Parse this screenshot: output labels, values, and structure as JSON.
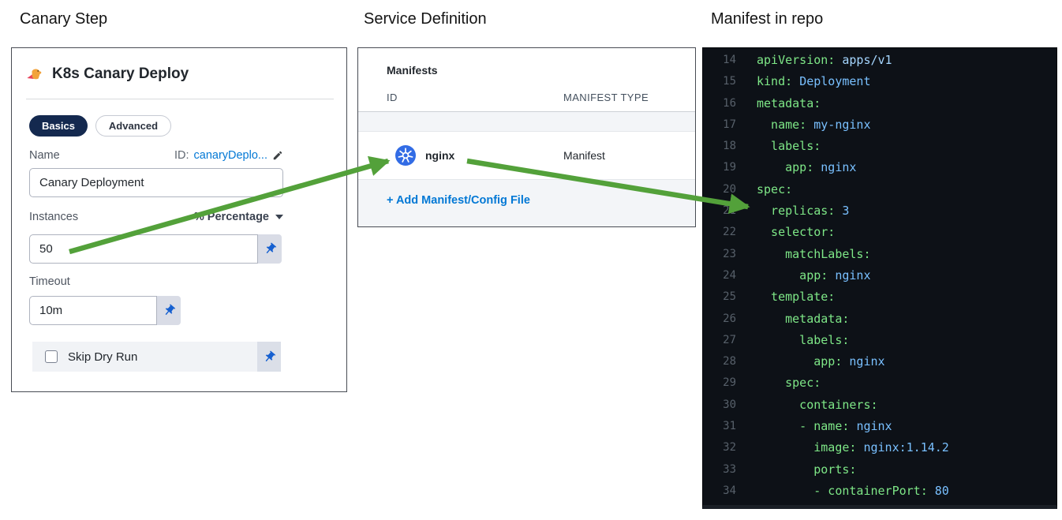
{
  "labels": {
    "canary_step": "Canary Step",
    "service_definition": "Service Definition",
    "manifest_in_repo": "Manifest in repo"
  },
  "canary_panel": {
    "title": "K8s Canary Deploy",
    "tabs": [
      {
        "label": "Basics",
        "active": true
      },
      {
        "label": "Advanced",
        "active": false
      }
    ],
    "name_field": {
      "label": "Name",
      "id_prefix": "ID:",
      "id_value": "canaryDeplo...",
      "value": "Canary Deployment"
    },
    "instances_field": {
      "label": "Instances",
      "unit_selector": "% Percentage",
      "value": "50"
    },
    "timeout_field": {
      "label": "Timeout",
      "value": "10m"
    },
    "skip_dry_run": {
      "label": "Skip Dry Run",
      "checked": false
    }
  },
  "service_panel": {
    "heading": "Manifests",
    "columns": [
      "ID",
      "MANIFEST TYPE"
    ],
    "rows": [
      {
        "id": "nginx",
        "type": "Manifest",
        "icon": "kubernetes-icon"
      }
    ],
    "add_link": "+ Add Manifest/Config File"
  },
  "code_panel": {
    "language": "yaml",
    "lines": [
      {
        "num": 14,
        "tokens": [
          [
            "key",
            "apiVersion:"
          ],
          [
            "pln",
            " "
          ],
          [
            "str",
            "apps/v1"
          ]
        ]
      },
      {
        "num": 15,
        "tokens": [
          [
            "key",
            "kind:"
          ],
          [
            "pln",
            " "
          ],
          [
            "val",
            "Deployment"
          ]
        ]
      },
      {
        "num": 16,
        "tokens": [
          [
            "key",
            "metadata:"
          ]
        ]
      },
      {
        "num": 17,
        "tokens": [
          [
            "key",
            "  name:"
          ],
          [
            "pln",
            " "
          ],
          [
            "val",
            "my-nginx"
          ]
        ]
      },
      {
        "num": 18,
        "tokens": [
          [
            "key",
            "  labels:"
          ]
        ]
      },
      {
        "num": 19,
        "tokens": [
          [
            "key",
            "    app:"
          ],
          [
            "pln",
            " "
          ],
          [
            "val",
            "nginx"
          ]
        ]
      },
      {
        "num": 20,
        "tokens": [
          [
            "key",
            "spec:"
          ]
        ]
      },
      {
        "num": 21,
        "tokens": [
          [
            "key",
            "  replicas:"
          ],
          [
            "pln",
            " "
          ],
          [
            "val",
            "3"
          ]
        ]
      },
      {
        "num": 22,
        "tokens": [
          [
            "key",
            "  selector:"
          ]
        ]
      },
      {
        "num": 23,
        "tokens": [
          [
            "key",
            "    matchLabels:"
          ]
        ]
      },
      {
        "num": 24,
        "tokens": [
          [
            "key",
            "      app:"
          ],
          [
            "pln",
            " "
          ],
          [
            "val",
            "nginx"
          ]
        ]
      },
      {
        "num": 25,
        "tokens": [
          [
            "key",
            "  template:"
          ]
        ]
      },
      {
        "num": 26,
        "tokens": [
          [
            "key",
            "    metadata:"
          ]
        ]
      },
      {
        "num": 27,
        "tokens": [
          [
            "key",
            "      labels:"
          ]
        ]
      },
      {
        "num": 28,
        "tokens": [
          [
            "key",
            "        app:"
          ],
          [
            "pln",
            " "
          ],
          [
            "val",
            "nginx"
          ]
        ]
      },
      {
        "num": 29,
        "tokens": [
          [
            "key",
            "    spec:"
          ]
        ]
      },
      {
        "num": 30,
        "tokens": [
          [
            "key",
            "      containers:"
          ]
        ]
      },
      {
        "num": 31,
        "tokens": [
          [
            "key",
            "      - name:"
          ],
          [
            "pln",
            " "
          ],
          [
            "val",
            "nginx"
          ]
        ]
      },
      {
        "num": 32,
        "tokens": [
          [
            "key",
            "        image:"
          ],
          [
            "pln",
            " "
          ],
          [
            "val",
            "nginx:1.14.2"
          ]
        ]
      },
      {
        "num": 33,
        "tokens": [
          [
            "key",
            "        ports:"
          ]
        ]
      },
      {
        "num": 34,
        "tokens": [
          [
            "key",
            "        - containerPort:"
          ],
          [
            "pln",
            " "
          ],
          [
            "val",
            "80"
          ]
        ]
      }
    ]
  },
  "colors": {
    "arrow_green": "#53a13a",
    "link_blue": "#0278d5",
    "pill_navy": "#14294f",
    "k8s_blue": "#326ce5",
    "pin_blue": "#1660d0",
    "code_bg": "#0d1117",
    "code_key": "#7ee787",
    "code_val": "#79c0ff",
    "code_str": "#a5d6ff",
    "code_line_number": "#57606a"
  }
}
